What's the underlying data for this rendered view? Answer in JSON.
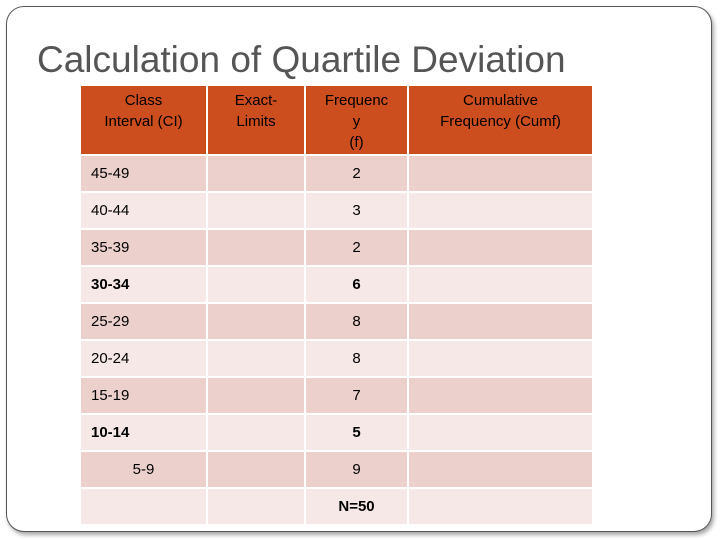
{
  "title": "Calculation of Quartile Deviation",
  "colors": {
    "header": "#cc4d1e",
    "row_dark": "#ecd0cc",
    "row_light": "#f6e8e6",
    "title": "#555555"
  },
  "table": {
    "headers": {
      "class_interval": [
        "Class",
        "Interval (CI)"
      ],
      "exact_limits": [
        "Exact-",
        "Limits"
      ],
      "frequency": [
        "Frequenc",
        "y",
        "(f)"
      ],
      "cumulative": [
        "Cumulative",
        "Frequency (Cumf)"
      ]
    },
    "rows": [
      {
        "ci": "45-49",
        "freq": "2"
      },
      {
        "ci": "40-44",
        "freq": "3"
      },
      {
        "ci": "35-39",
        "freq": "2"
      },
      {
        "ci": "30-34",
        "freq": "6"
      },
      {
        "ci": "25-29",
        "freq": "8"
      },
      {
        "ci": "20-24",
        "freq": "8"
      },
      {
        "ci": "15-19",
        "freq": "7"
      },
      {
        "ci": "10-14",
        "freq": "5"
      },
      {
        "ci": "5-9",
        "freq": "9"
      }
    ],
    "total": {
      "ci": "",
      "freq": "N=50"
    }
  }
}
